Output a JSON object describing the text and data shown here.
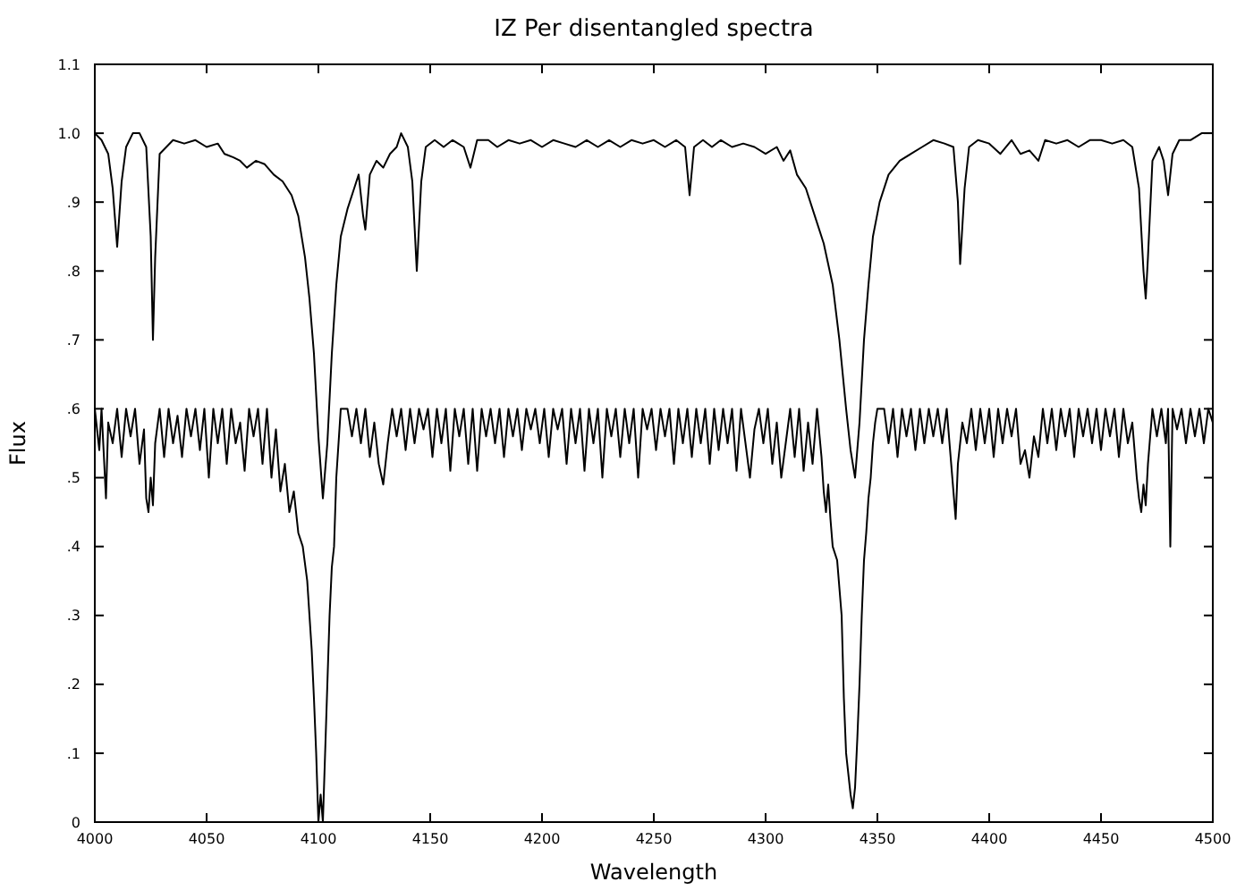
{
  "chart_data": {
    "type": "line",
    "title": "IZ Per disentangled spectra",
    "xlabel": "Wavelength",
    "ylabel": "Flux",
    "xlim": [
      4000,
      4500
    ],
    "xticks": [
      4000,
      4050,
      4100,
      4150,
      4200,
      4250,
      4300,
      4350,
      4400,
      4450,
      4500
    ],
    "ylim": [
      0,
      1.1
    ],
    "yticks": [
      0,
      {
        "value": 0.1,
        "label": ".1"
      },
      {
        "value": 0.2,
        "label": ".2"
      },
      {
        "value": 0.3,
        "label": ".3"
      },
      {
        "value": 0.4,
        "label": ".4"
      },
      {
        "value": 0.5,
        "label": ".5"
      },
      {
        "value": 0.6,
        "label": ".6"
      },
      {
        "value": 0.7,
        "label": ".7"
      },
      {
        "value": 0.8,
        "label": ".8"
      },
      {
        "value": 0.9,
        "label": ".9"
      },
      {
        "value": 1,
        "label": "1.0"
      },
      1.1
    ],
    "grid": false,
    "marker": "none",
    "line_style": "solid",
    "series": [
      {
        "color": "#000000",
        "x": [
          4000,
          4003,
          4006,
          4008,
          4010,
          4012,
          4014,
          4017,
          4020,
          4023,
          4025,
          4026,
          4027,
          4029,
          4032,
          4035,
          4040,
          4045,
          4050,
          4055,
          4058,
          4062,
          4065,
          4068,
          4072,
          4076,
          4080,
          4084,
          4088,
          4091,
          4094,
          4096,
          4098,
          4100,
          4102,
          4104,
          4106,
          4108,
          4110,
          4113,
          4116,
          4118,
          4120,
          4121,
          4123,
          4126,
          4129,
          4132,
          4135,
          4137,
          4140,
          4142,
          4144,
          4146,
          4148,
          4152,
          4156,
          4160,
          4165,
          4168,
          4171,
          4176,
          4180,
          4185,
          4190,
          4195,
          4200,
          4205,
          4210,
          4215,
          4220,
          4225,
          4230,
          4235,
          4240,
          4245,
          4250,
          4255,
          4260,
          4264,
          4266,
          4268,
          4272,
          4276,
          4280,
          4285,
          4290,
          4295,
          4300,
          4305,
          4308,
          4311,
          4314,
          4318,
          4322,
          4326,
          4330,
          4333,
          4336,
          4338,
          4340,
          4342,
          4344,
          4346,
          4348,
          4351,
          4355,
          4360,
          4365,
          4370,
          4375,
          4380,
          4384,
          4386,
          4387,
          4389,
          4391,
          4395,
          4400,
          4405,
          4410,
          4414,
          4418,
          4422,
          4425,
          4430,
          4435,
          4440,
          4445,
          4450,
          4455,
          4460,
          4464,
          4467,
          4469,
          4470,
          4471,
          4473,
          4476,
          4478,
          4480,
          4482,
          4485,
          4490,
          4495,
          4500
        ],
        "values": [
          1.0,
          0.99,
          0.97,
          0.92,
          0.835,
          0.93,
          0.98,
          1.0,
          1.0,
          0.98,
          0.85,
          0.7,
          0.82,
          0.97,
          0.98,
          0.99,
          0.985,
          0.99,
          0.98,
          0.985,
          0.97,
          0.965,
          0.96,
          0.95,
          0.96,
          0.955,
          0.94,
          0.93,
          0.91,
          0.88,
          0.82,
          0.76,
          0.68,
          0.56,
          0.47,
          0.55,
          0.68,
          0.78,
          0.85,
          0.89,
          0.92,
          0.94,
          0.88,
          0.86,
          0.94,
          0.96,
          0.95,
          0.97,
          0.98,
          1.0,
          0.98,
          0.93,
          0.8,
          0.93,
          0.98,
          0.99,
          0.98,
          0.99,
          0.98,
          0.95,
          0.99,
          0.99,
          0.98,
          0.99,
          0.985,
          0.99,
          0.98,
          0.99,
          0.985,
          0.98,
          0.99,
          0.98,
          0.99,
          0.98,
          0.99,
          0.985,
          0.99,
          0.98,
          0.99,
          0.98,
          0.91,
          0.98,
          0.99,
          0.98,
          0.99,
          0.98,
          0.985,
          0.98,
          0.97,
          0.98,
          0.96,
          0.975,
          0.94,
          0.92,
          0.88,
          0.84,
          0.78,
          0.7,
          0.6,
          0.54,
          0.5,
          0.58,
          0.7,
          0.78,
          0.85,
          0.9,
          0.94,
          0.96,
          0.97,
          0.98,
          0.99,
          0.985,
          0.98,
          0.9,
          0.81,
          0.92,
          0.98,
          0.99,
          0.985,
          0.97,
          0.99,
          0.97,
          0.975,
          0.96,
          0.99,
          0.985,
          0.99,
          0.98,
          0.99,
          0.99,
          0.985,
          0.99,
          0.98,
          0.92,
          0.8,
          0.76,
          0.82,
          0.96,
          0.98,
          0.96,
          0.91,
          0.97,
          0.99,
          0.99,
          1.0,
          1.0
        ]
      },
      {
        "color": "#000000",
        "x": [
          4000,
          4002,
          4003,
          4005,
          4006,
          4008,
          4010,
          4012,
          4014,
          4016,
          4018,
          4020,
          4022,
          4023,
          4024,
          4025,
          4026,
          4027,
          4029,
          4031,
          4033,
          4035,
          4037,
          4039,
          4041,
          4043,
          4045,
          4047,
          4049,
          4051,
          4053,
          4055,
          4057,
          4059,
          4061,
          4063,
          4065,
          4067,
          4069,
          4071,
          4073,
          4075,
          4077,
          4079,
          4081,
          4083,
          4085,
          4087,
          4089,
          4091,
          4093,
          4095,
          4096,
          4097,
          4098,
          4099,
          4100,
          4101,
          4102,
          4103,
          4104,
          4105,
          4106,
          4107,
          4108,
          4109,
          4110,
          4113,
          4115,
          4117,
          4119,
          4121,
          4123,
          4125,
          4127,
          4129,
          4131,
          4133,
          4135,
          4137,
          4139,
          4141,
          4143,
          4145,
          4147,
          4149,
          4151,
          4153,
          4155,
          4157,
          4159,
          4161,
          4163,
          4165,
          4167,
          4169,
          4171,
          4173,
          4175,
          4177,
          4179,
          4181,
          4183,
          4185,
          4187,
          4189,
          4191,
          4193,
          4195,
          4197,
          4199,
          4201,
          4203,
          4205,
          4207,
          4209,
          4211,
          4213,
          4215,
          4217,
          4219,
          4221,
          4223,
          4225,
          4227,
          4229,
          4231,
          4233,
          4235,
          4237,
          4239,
          4241,
          4243,
          4245,
          4247,
          4249,
          4251,
          4253,
          4255,
          4257,
          4259,
          4261,
          4263,
          4265,
          4267,
          4269,
          4271,
          4273,
          4275,
          4277,
          4279,
          4281,
          4283,
          4285,
          4287,
          4289,
          4291,
          4293,
          4295,
          4297,
          4299,
          4301,
          4303,
          4305,
          4307,
          4309,
          4311,
          4313,
          4315,
          4317,
          4319,
          4321,
          4323,
          4325,
          4326,
          4327,
          4328,
          4329,
          4330,
          4332,
          4334,
          4335,
          4336,
          4337,
          4338,
          4339,
          4340,
          4341,
          4342,
          4343,
          4344,
          4345,
          4346,
          4347,
          4348,
          4349,
          4350,
          4353,
          4355,
          4357,
          4359,
          4361,
          4363,
          4365,
          4367,
          4369,
          4371,
          4373,
          4375,
          4377,
          4379,
          4381,
          4383,
          4385,
          4386,
          4388,
          4390,
          4392,
          4394,
          4396,
          4398,
          4400,
          4402,
          4404,
          4406,
          4408,
          4410,
          4412,
          4414,
          4416,
          4418,
          4420,
          4422,
          4424,
          4426,
          4428,
          4430,
          4432,
          4434,
          4436,
          4438,
          4440,
          4442,
          4444,
          4446,
          4448,
          4450,
          4452,
          4454,
          4456,
          4458,
          4460,
          4462,
          4464,
          4466,
          4467,
          4468,
          4469,
          4470,
          4471,
          4473,
          4475,
          4477,
          4479,
          4480,
          4481,
          4482,
          4484,
          4486,
          4488,
          4490,
          4492,
          4494,
          4496,
          4498,
          4500
        ],
        "values": [
          0.6,
          0.54,
          0.6,
          0.47,
          0.58,
          0.55,
          0.6,
          0.53,
          0.6,
          0.56,
          0.6,
          0.52,
          0.57,
          0.47,
          0.45,
          0.5,
          0.46,
          0.55,
          0.6,
          0.53,
          0.6,
          0.55,
          0.59,
          0.53,
          0.6,
          0.56,
          0.6,
          0.54,
          0.6,
          0.5,
          0.6,
          0.55,
          0.6,
          0.52,
          0.6,
          0.55,
          0.58,
          0.51,
          0.6,
          0.56,
          0.6,
          0.52,
          0.6,
          0.5,
          0.57,
          0.48,
          0.52,
          0.45,
          0.48,
          0.42,
          0.4,
          0.35,
          0.3,
          0.25,
          0.18,
          0.1,
          0.0,
          0.04,
          0.0,
          0.1,
          0.2,
          0.3,
          0.37,
          0.4,
          0.5,
          0.55,
          0.6,
          0.6,
          0.56,
          0.6,
          0.55,
          0.6,
          0.53,
          0.58,
          0.52,
          0.49,
          0.55,
          0.6,
          0.56,
          0.6,
          0.54,
          0.6,
          0.55,
          0.6,
          0.57,
          0.6,
          0.53,
          0.6,
          0.55,
          0.6,
          0.51,
          0.6,
          0.56,
          0.6,
          0.52,
          0.6,
          0.51,
          0.6,
          0.56,
          0.6,
          0.55,
          0.6,
          0.53,
          0.6,
          0.56,
          0.6,
          0.54,
          0.6,
          0.57,
          0.6,
          0.55,
          0.6,
          0.53,
          0.6,
          0.57,
          0.6,
          0.52,
          0.6,
          0.55,
          0.6,
          0.51,
          0.6,
          0.55,
          0.6,
          0.5,
          0.6,
          0.56,
          0.6,
          0.53,
          0.6,
          0.55,
          0.6,
          0.5,
          0.6,
          0.57,
          0.6,
          0.54,
          0.6,
          0.56,
          0.6,
          0.52,
          0.6,
          0.55,
          0.6,
          0.53,
          0.6,
          0.55,
          0.6,
          0.52,
          0.6,
          0.54,
          0.6,
          0.55,
          0.6,
          0.51,
          0.6,
          0.55,
          0.5,
          0.57,
          0.6,
          0.55,
          0.6,
          0.52,
          0.58,
          0.5,
          0.55,
          0.6,
          0.53,
          0.6,
          0.51,
          0.58,
          0.52,
          0.6,
          0.53,
          0.48,
          0.45,
          0.49,
          0.44,
          0.4,
          0.38,
          0.3,
          0.18,
          0.1,
          0.07,
          0.04,
          0.02,
          0.05,
          0.12,
          0.2,
          0.3,
          0.38,
          0.42,
          0.47,
          0.5,
          0.55,
          0.58,
          0.6,
          0.6,
          0.55,
          0.6,
          0.53,
          0.6,
          0.56,
          0.6,
          0.54,
          0.6,
          0.55,
          0.6,
          0.56,
          0.6,
          0.55,
          0.6,
          0.52,
          0.44,
          0.52,
          0.58,
          0.55,
          0.6,
          0.54,
          0.6,
          0.55,
          0.6,
          0.53,
          0.6,
          0.55,
          0.6,
          0.56,
          0.6,
          0.52,
          0.54,
          0.5,
          0.56,
          0.53,
          0.6,
          0.55,
          0.6,
          0.54,
          0.6,
          0.56,
          0.6,
          0.53,
          0.6,
          0.56,
          0.6,
          0.55,
          0.6,
          0.54,
          0.6,
          0.56,
          0.6,
          0.53,
          0.6,
          0.55,
          0.58,
          0.5,
          0.47,
          0.45,
          0.49,
          0.46,
          0.52,
          0.6,
          0.56,
          0.6,
          0.55,
          0.6,
          0.4,
          0.6,
          0.57,
          0.6,
          0.55,
          0.6,
          0.56,
          0.6,
          0.55,
          0.6,
          0.58
        ]
      }
    ]
  }
}
